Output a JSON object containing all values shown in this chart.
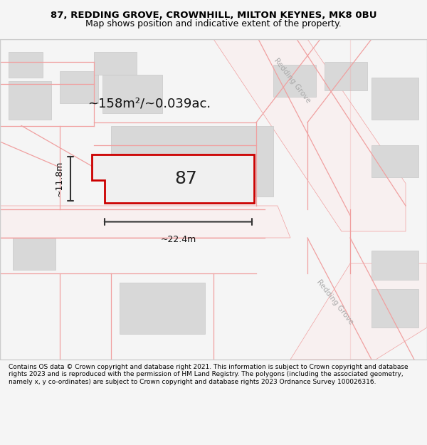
{
  "title_line1": "87, REDDING GROVE, CROWNHILL, MILTON KEYNES, MK8 0BU",
  "title_line2": "Map shows position and indicative extent of the property.",
  "footer_text": "Contains OS data © Crown copyright and database right 2021. This information is subject to Crown copyright and database rights 2023 and is reproduced with the permission of HM Land Registry. The polygons (including the associated geometry, namely x, y co-ordinates) are subject to Crown copyright and database rights 2023 Ordnance Survey 100026316.",
  "bg_color": "#f5f5f5",
  "map_bg": "#ffffff",
  "road_fill": "#ffffff",
  "road_stroke": "#f0a0a0",
  "building_fill": "#d8d8d8",
  "building_stroke": "#c8c8c8",
  "plot_stroke": "#cc0000",
  "plot_fill": "#f0f0f0",
  "dim_color": "#333333",
  "area_text": "~158m²/~0.039ac.",
  "plot_label": "87",
  "dim_width": "~22.4m",
  "dim_height": "~11.8m",
  "street_label_1": "Redding Grove",
  "street_label_2": "Redding Grove"
}
